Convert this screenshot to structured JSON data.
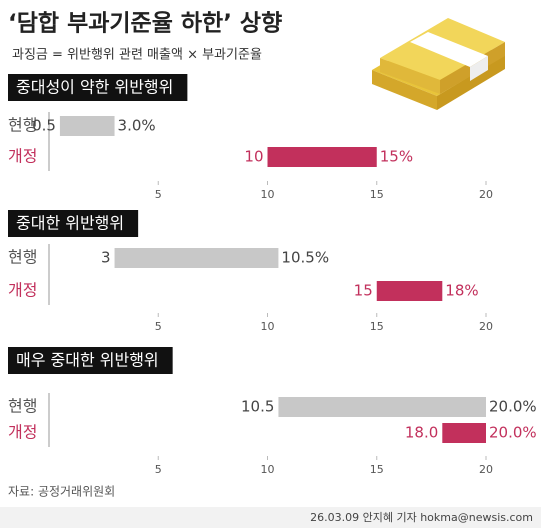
{
  "title": "‘담합 부과기준율 하한’ 상향",
  "subtitle": "과징금 = 위반행위 관련 매출액 × 부과기준율",
  "source": "자료: 공정거래위원회",
  "credit": "26.03.09 안지혜 기자 hokma@newsis.com",
  "chart_data": [
    {
      "type": "range-bar",
      "title": "중대성이 약한 위반행위",
      "xlim": [
        0,
        20
      ],
      "xticks": [
        5,
        10,
        15,
        20
      ],
      "series": [
        {
          "name": "현행",
          "color": "#c8c8c8",
          "values": [
            0.5,
            3.0
          ],
          "value_labels": [
            "0.5",
            "3.0%"
          ]
        },
        {
          "name": "개정",
          "color": "#c2305c",
          "values": [
            10,
            15
          ],
          "value_labels": [
            "10",
            "15%"
          ]
        }
      ]
    },
    {
      "type": "range-bar",
      "title": "중대한 위반행위",
      "xlim": [
        0,
        20
      ],
      "xticks": [
        5,
        10,
        15,
        20
      ],
      "series": [
        {
          "name": "현행",
          "color": "#c8c8c8",
          "values": [
            3,
            10.5
          ],
          "value_labels": [
            "3",
            "10.5%"
          ]
        },
        {
          "name": "개정",
          "color": "#c2305c",
          "values": [
            15,
            18
          ],
          "value_labels": [
            "15",
            "18%"
          ]
        }
      ]
    },
    {
      "type": "range-bar",
      "title": "매우 중대한 위반행위",
      "xlim": [
        0,
        20
      ],
      "xticks": [
        5,
        10,
        15,
        20
      ],
      "series": [
        {
          "name": "현행",
          "color": "#c8c8c8",
          "values": [
            10.5,
            20.0
          ],
          "value_labels": [
            "10.5",
            "20.0%"
          ]
        },
        {
          "name": "개정",
          "color": "#c2305c",
          "values": [
            18.0,
            20.0
          ],
          "value_labels": [
            "18.0",
            "20.0%"
          ]
        }
      ]
    }
  ]
}
